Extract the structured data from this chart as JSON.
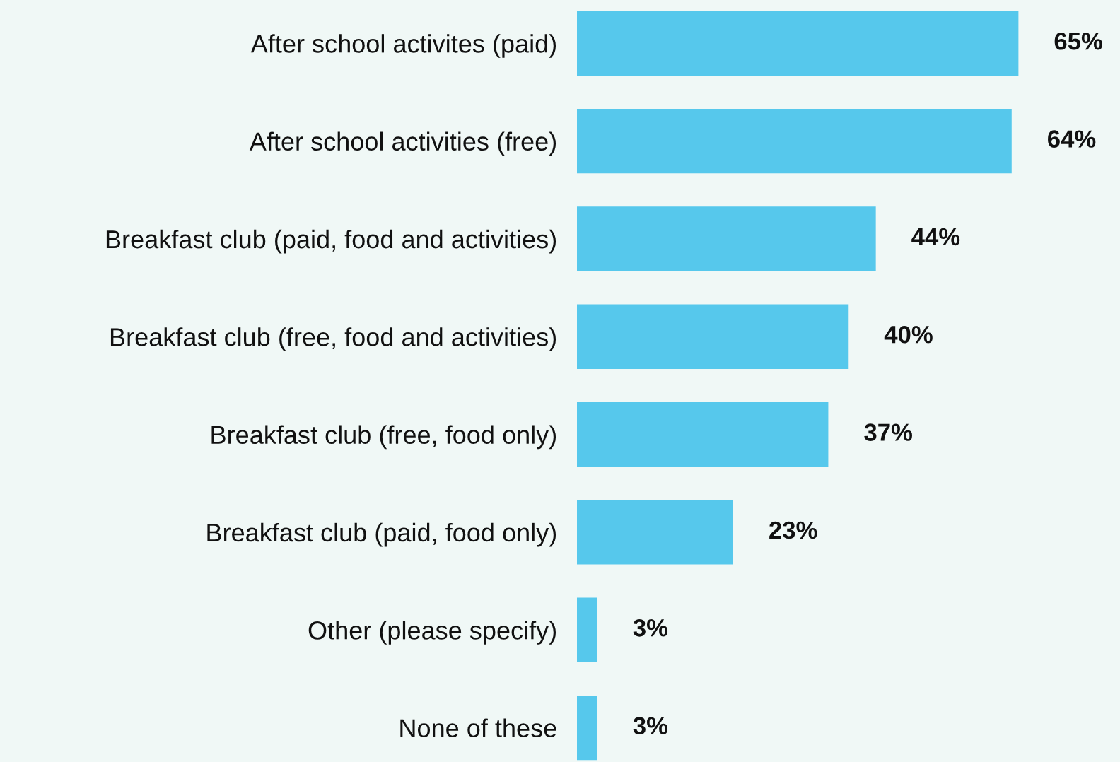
{
  "chart_data": {
    "type": "bar",
    "orientation": "horizontal",
    "categories": [
      "After school activites (paid)",
      "After school activities (free)",
      "Breakfast club (paid, food and activities)",
      "Breakfast club (free, food and activities)",
      "Breakfast club (free, food only)",
      "Breakfast club (paid, food only)",
      "Other (please specify)",
      "None of these"
    ],
    "values": [
      65,
      64,
      44,
      40,
      37,
      23,
      3,
      3
    ],
    "value_labels": [
      "65%",
      "64%",
      "44%",
      "40%",
      "37%",
      "23%",
      "3%",
      "3%"
    ],
    "color": "#56c8ec",
    "grid": false,
    "legend": false
  }
}
